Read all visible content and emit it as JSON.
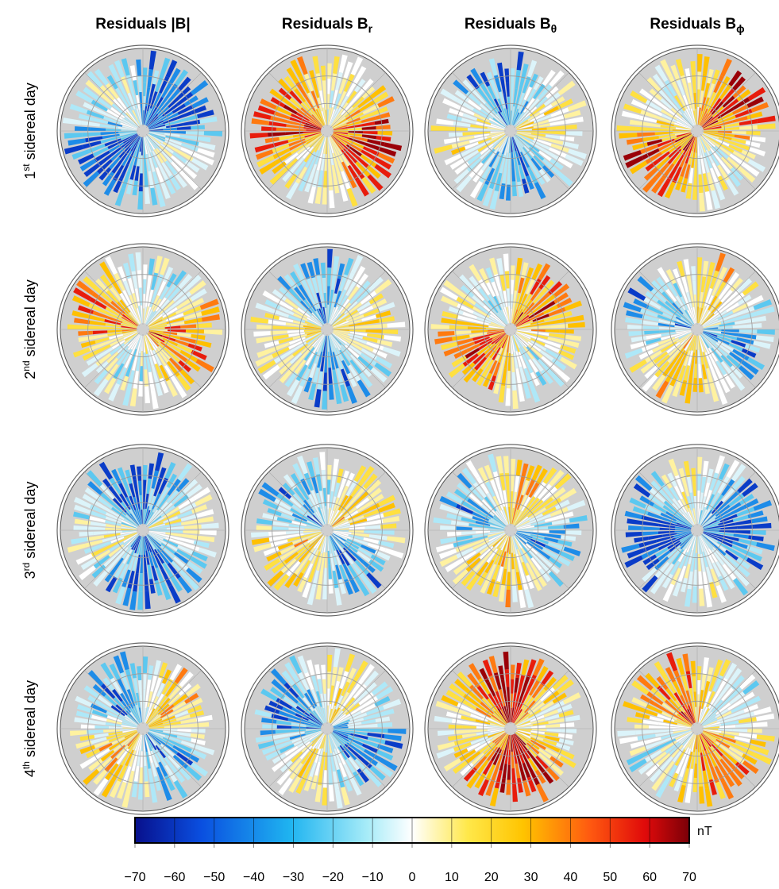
{
  "columns": [
    {
      "title": "Residuals |B|",
      "sub": null
    },
    {
      "title": "Residuals B",
      "sub": "r"
    },
    {
      "title": "Residuals B",
      "sub": "θ"
    },
    {
      "title": "Residuals B",
      "sub": "ϕ"
    }
  ],
  "rows": [
    {
      "num": "1",
      "sup": "st",
      "text": "sidereal day"
    },
    {
      "num": "2",
      "sup": "nd",
      "text": "sidereal day"
    },
    {
      "num": "3",
      "sup": "rd",
      "text": "sidereal day"
    },
    {
      "num": "4",
      "sup": "th",
      "text": "sidereal day"
    }
  ],
  "colorbar": {
    "unit": "nT",
    "lim": [
      -70,
      70
    ],
    "ticks": [
      {
        "value": -70,
        "label": "−70"
      },
      {
        "value": -60,
        "label": "−60"
      },
      {
        "value": -50,
        "label": "−50"
      },
      {
        "value": -40,
        "label": "−40"
      },
      {
        "value": -30,
        "label": "−30"
      },
      {
        "value": -20,
        "label": "−20"
      },
      {
        "value": -10,
        "label": "−10"
      },
      0,
      10,
      20,
      30,
      40,
      50,
      60,
      70
    ]
  }
}
